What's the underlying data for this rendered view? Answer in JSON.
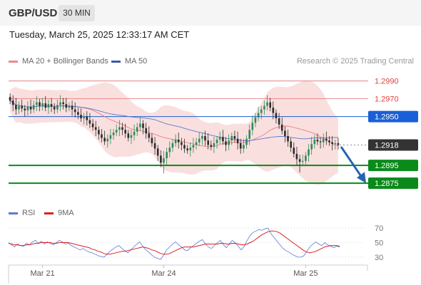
{
  "header": {
    "symbol": "GBP/USD",
    "timeframe": "30 MIN",
    "datetime": "Tuesday, March 25, 2025 12:33:17 AM CET"
  },
  "legend": {
    "ma20": "MA 20 + Bollinger Bands",
    "ma50": "MA 50",
    "credit": "Research © 2025 Trading Central",
    "rsi": "RSI",
    "ma9": "9MA"
  },
  "colors": {
    "bullish": "#2e8b57",
    "bearish": "#2b2b2b",
    "bollinger": "#f4b9b9",
    "ma20": "#e88080",
    "ma50": "#5a7bd0",
    "resistance": "#1a5fd6",
    "support": "#0a8a1a",
    "arrow": "#2464b0",
    "rsi": "#5a7bd0",
    "rsi_ma": "#dd1f1f"
  },
  "chart_data": {
    "type": "candlestick",
    "ylim": [
      1.2855,
      1.3005
    ],
    "xlabels": [
      "Mar 21",
      "Mar 24",
      "Mar 25"
    ],
    "levels": [
      {
        "value": 1.299,
        "label": "1.2990",
        "kind": "resistance-minor"
      },
      {
        "value": 1.297,
        "label": "1.2970",
        "kind": "resistance-minor"
      },
      {
        "value": 1.295,
        "label": "1.2950",
        "kind": "resistance"
      },
      {
        "value": 1.2918,
        "label": "1.2918",
        "kind": "last-price"
      },
      {
        "value": 1.2895,
        "label": "1.2895",
        "kind": "support"
      },
      {
        "value": 1.2875,
        "label": "1.2875",
        "kind": "support"
      }
    ],
    "last_price": 1.2918,
    "forecast": {
      "from": 1.2916,
      "to": 1.2878
    },
    "closes": [
      1.2968,
      1.2963,
      1.2958,
      1.2962,
      1.2959,
      1.2957,
      1.2961,
      1.2958,
      1.2963,
      1.2966,
      1.2962,
      1.2965,
      1.296,
      1.2964,
      1.2961,
      1.2958,
      1.2963,
      1.2966,
      1.2964,
      1.296,
      1.2962,
      1.2958,
      1.2955,
      1.2952,
      1.2948,
      1.295,
      1.2946,
      1.2942,
      1.2938,
      1.2935,
      1.293,
      1.2926,
      1.2922,
      1.2925,
      1.2929,
      1.2932,
      1.2935,
      1.2938,
      1.2935,
      1.2931,
      1.2926,
      1.2929,
      1.2933,
      1.2938,
      1.2942,
      1.2937,
      1.2931,
      1.2926,
      1.292,
      1.2914,
      1.2906,
      1.2898,
      1.2903,
      1.291,
      1.2915,
      1.292,
      1.2924,
      1.2921,
      1.2918,
      1.2914,
      1.2912,
      1.2915,
      1.2918,
      1.2921,
      1.2925,
      1.2928,
      1.2923,
      1.2918,
      1.2916,
      1.292,
      1.2924,
      1.2927,
      1.2922,
      1.2918,
      1.2923,
      1.2928,
      1.2925,
      1.292,
      1.2914,
      1.2918,
      1.2925,
      1.2935,
      1.2943,
      1.2949,
      1.2954,
      1.2958,
      1.2962,
      1.2966,
      1.296,
      1.2954,
      1.2948,
      1.2941,
      1.2934,
      1.2928,
      1.2922,
      1.2915,
      1.2908,
      1.2902,
      1.2899,
      1.29,
      1.2906,
      1.2913,
      1.2919,
      1.2924,
      1.2922,
      1.2921,
      1.2925,
      1.2923,
      1.2921,
      1.2919,
      1.292,
      1.2918
    ],
    "rsi_ticks": [
      70,
      50,
      30
    ],
    "rsi_ylim": [
      25,
      75
    ],
    "rsi": [
      50,
      47,
      44,
      48,
      46,
      45,
      49,
      47,
      51,
      53,
      49,
      52,
      48,
      51,
      49,
      47,
      50,
      53,
      51,
      48,
      49,
      46,
      44,
      42,
      40,
      42,
      39,
      37,
      36,
      34,
      32,
      31,
      30,
      34,
      38,
      41,
      44,
      46,
      42,
      39,
      36,
      40,
      44,
      48,
      51,
      45,
      40,
      37,
      33,
      30,
      28,
      27,
      33,
      40,
      44,
      48,
      51,
      47,
      44,
      40,
      39,
      43,
      46,
      49,
      52,
      54,
      48,
      44,
      42,
      46,
      50,
      53,
      47,
      43,
      48,
      53,
      50,
      45,
      40,
      45,
      53,
      60,
      64,
      66,
      68,
      67,
      69,
      70,
      62,
      57,
      52,
      47,
      42,
      39,
      37,
      34,
      32,
      30,
      30,
      32,
      38,
      44,
      48,
      51,
      48,
      46,
      50,
      47,
      45,
      43,
      45,
      44
    ],
    "rsi_ma": [
      49,
      48,
      47,
      47,
      46,
      46,
      47,
      47,
      48,
      49,
      49,
      50,
      50,
      50,
      50,
      49,
      49,
      50,
      50,
      50,
      50,
      49,
      48,
      47,
      46,
      45,
      44,
      43,
      41,
      40,
      38,
      37,
      35,
      34,
      34,
      35,
      36,
      37,
      38,
      38,
      39,
      40,
      41,
      42,
      43,
      44,
      43,
      42,
      40,
      39,
      37,
      35,
      34,
      34,
      35,
      37,
      39,
      41,
      43,
      44,
      44,
      44,
      44,
      45,
      46,
      47,
      48,
      48,
      48,
      48,
      48,
      49,
      49,
      48,
      48,
      49,
      49,
      48,
      47,
      47,
      48,
      50,
      52,
      55,
      58,
      61,
      63,
      65,
      66,
      66,
      65,
      63,
      60,
      57,
      54,
      51,
      48,
      45,
      42,
      39,
      37,
      36,
      37,
      38,
      40,
      42,
      44,
      45,
      46,
      46,
      46,
      45
    ]
  }
}
